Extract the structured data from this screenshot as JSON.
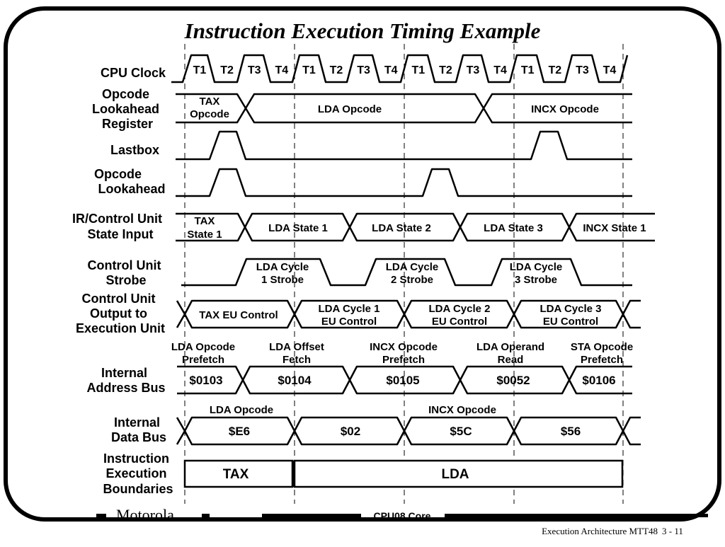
{
  "title": "Instruction Execution Timing Example",
  "signals": [
    {
      "name": "CPU Clock"
    },
    {
      "name": "Opcode Lookahead Register"
    },
    {
      "name": "Lastbox"
    },
    {
      "name": "Opcode Lookahead"
    },
    {
      "name": "IR/Control Unit State Input"
    },
    {
      "name": "Control Unit Strobe"
    },
    {
      "name": "Control Unit Output to Execution Unit"
    },
    {
      "name": "Internal Address Bus"
    },
    {
      "name": "Internal Data Bus"
    },
    {
      "name": "Instruction Execution Boundaries"
    }
  ],
  "clock_phases": [
    "T1",
    "T2",
    "T3",
    "T4",
    "T1",
    "T2",
    "T3",
    "T4",
    "T1",
    "T2",
    "T3",
    "T4",
    "T1",
    "T2",
    "T3",
    "T4"
  ],
  "opcode_register": [
    "TAX Opcode",
    "LDA Opcode",
    "INCX Opcode"
  ],
  "state_input": [
    "TAX State 1",
    "LDA State 1",
    "LDA State 2",
    "LDA State 3",
    "INCX State 1"
  ],
  "strobes": [
    "LDA Cycle 1 Strobe",
    "LDA Cycle 2 Strobe",
    "LDA Cycle 3 Strobe"
  ],
  "eu_control": [
    "TAX EU Control",
    "LDA Cycle 1 EU Control",
    "LDA Cycle 2 EU Control",
    "LDA Cycle 3 EU Control"
  ],
  "address_cycles": [
    "LDA Opcode Prefetch",
    "LDA Offset Fetch",
    "INCX Opcode Prefetch",
    "LDA Operand Read",
    "STA Opcode Prefetch"
  ],
  "address_values": [
    "$0103",
    "$0104",
    "$0105",
    "$0052",
    "$0106"
  ],
  "data_annotations": [
    "LDA Opcode",
    "INCX Opcode"
  ],
  "data_values": [
    "$E6",
    "$02",
    "$5C",
    "$56"
  ],
  "boundaries": [
    "TAX",
    "LDA"
  ],
  "footer": {
    "brand": "Motorola",
    "center": "CPU08 Core",
    "right": "Execution Architecture MTT48",
    "page": "3 - 11"
  }
}
